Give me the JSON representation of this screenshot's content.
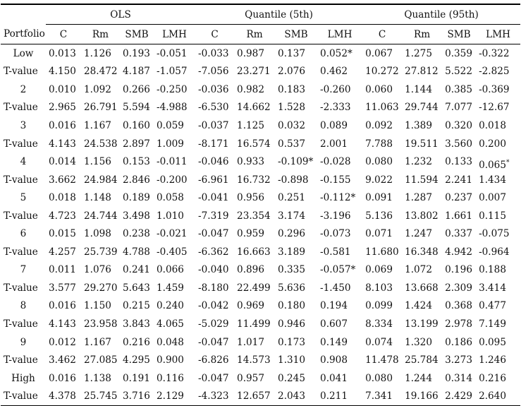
{
  "groups": [
    "OLS",
    "Quantile (5th)",
    "Quantile (95th)"
  ],
  "columns": [
    "Portfolio",
    "C",
    "Rm",
    "SMB",
    "LMH",
    "C",
    "Rm",
    "SMB",
    "LMH",
    "C",
    "Rm",
    "SMB",
    "LMH"
  ],
  "rows": [
    [
      "Low",
      "0.013",
      "1.126",
      "0.193",
      "-0.051",
      "-0.033",
      "0.987",
      "0.137",
      "0.052*",
      "0.067",
      "1.275",
      "0.359",
      "-0.322"
    ],
    [
      "T-value",
      "4.150",
      "28.472",
      "4.187",
      "-1.057",
      "-7.056",
      "23.271",
      "2.076",
      "0.462",
      "10.272",
      "27.812",
      "5.522",
      "-2.825"
    ],
    [
      "2",
      "0.010",
      "1.092",
      "0.266",
      "-0.250",
      "-0.036",
      "0.982",
      "0.183",
      "-0.260",
      "0.060",
      "1.144",
      "0.385",
      "-0.369"
    ],
    [
      "T-value",
      "2.965",
      "26.791",
      "5.594",
      "-4.988",
      "-6.530",
      "14.662",
      "1.528",
      "-2.333",
      "11.063",
      "29.744",
      "7.077",
      "-12.67"
    ],
    [
      "3",
      "0.016",
      "1.167",
      "0.160",
      "0.059",
      "-0.037",
      "1.125",
      "0.032",
      "0.089",
      "0.092",
      "1.389",
      "0.320",
      "0.018"
    ],
    [
      "T-value",
      "4.143",
      "24.538",
      "2.897",
      "1.009",
      "-8.171",
      "16.574",
      "0.537",
      "2.001",
      "7.788",
      "19.511",
      "3.560",
      "0.200"
    ],
    [
      "4",
      "0.014",
      "1.156",
      "0.153",
      "-0.011",
      "-0.046",
      "0.933",
      "-0.109*",
      "-0.028",
      "0.080",
      "1.232",
      "0.133",
      "0.065*"
    ],
    [
      "T-value",
      "3.662",
      "24.984",
      "2.846",
      "-0.200",
      "-6.961",
      "16.732",
      "-0.898",
      "-0.155",
      "9.022",
      "11.594",
      "2.241",
      "1.434"
    ],
    [
      "5",
      "0.018",
      "1.148",
      "0.189",
      "0.058",
      "-0.041",
      "0.956",
      "0.251",
      "-0.112*",
      "0.091",
      "1.287",
      "0.237",
      "0.007"
    ],
    [
      "T-value",
      "4.723",
      "24.744",
      "3.498",
      "1.010",
      "-7.319",
      "23.354",
      "3.174",
      "-3.196",
      "5.136",
      "13.802",
      "1.661",
      "0.115"
    ],
    [
      "6",
      "0.015",
      "1.098",
      "0.238",
      "-0.021",
      "-0.047",
      "0.959",
      "0.296",
      "-0.073",
      "0.071",
      "1.247",
      "0.337",
      "-0.075"
    ],
    [
      "T-value",
      "4.257",
      "25.739",
      "4.788",
      "-0.405",
      "-6.362",
      "16.663",
      "3.189",
      "-0.581",
      "11.680",
      "16.348",
      "4.942",
      "-0.964"
    ],
    [
      "7",
      "0.011",
      "1.076",
      "0.241",
      "0.066",
      "-0.040",
      "0.896",
      "0.335",
      "-0.057*",
      "0.069",
      "1.072",
      "0.196",
      "0.188"
    ],
    [
      "T-value",
      "3.577",
      "29.270",
      "5.643",
      "1.459",
      "-8.180",
      "22.499",
      "5.636",
      "-1.450",
      "8.103",
      "13.668",
      "2.309",
      "3.414"
    ],
    [
      "8",
      "0.016",
      "1.150",
      "0.215",
      "0.240",
      "-0.042",
      "0.969",
      "0.180",
      "0.194",
      "0.099",
      "1.424",
      "0.368",
      "0.477"
    ],
    [
      "T-value",
      "4.143",
      "23.958",
      "3.843",
      "4.065",
      "-5.029",
      "11.499",
      "0.946",
      "0.607",
      "8.334",
      "13.199",
      "2.978",
      "7.149"
    ],
    [
      "9",
      "0.012",
      "1.167",
      "0.216",
      "0.048",
      "-0.047",
      "1.017",
      "0.173",
      "0.149",
      "0.074",
      "1.320",
      "0.186",
      "0.095"
    ],
    [
      "T-value",
      "3.462",
      "27.085",
      "4.295",
      "0.900",
      "-6.826",
      "14.573",
      "1.310",
      "0.908",
      "11.478",
      "25.784",
      "3.273",
      "1.246"
    ],
    [
      "High",
      "0.016",
      "1.138",
      "0.191",
      "0.116",
      "-0.047",
      "0.957",
      "0.245",
      "0.041",
      "0.080",
      "1.244",
      "0.314",
      "0.216"
    ],
    [
      "T-value",
      "4.378",
      "25.745",
      "3.716",
      "2.129",
      "-4.323",
      "12.657",
      "2.043",
      "0.211",
      "7.341",
      "19.166",
      "2.429",
      "2.640"
    ]
  ]
}
